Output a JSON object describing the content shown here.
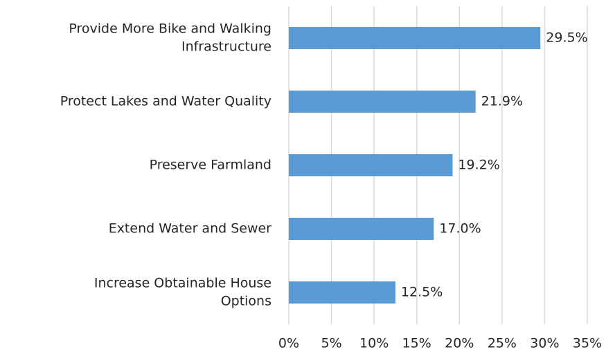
{
  "chart_data": {
    "type": "bar",
    "orientation": "horizontal",
    "categories": [
      [
        "Provide More Bike and Walking",
        "Infrastructure"
      ],
      [
        "Protect Lakes and Water Quality"
      ],
      [
        "Preserve Farmland"
      ],
      [
        "Extend Water and Sewer"
      ],
      [
        "Increase Obtainable House",
        "Options"
      ]
    ],
    "values": [
      29.5,
      21.9,
      19.2,
      17.0,
      12.5
    ],
    "value_labels": [
      "29.5%",
      "21.9%",
      "19.2%",
      "17.0%",
      "12.5%"
    ],
    "color": "#5b9bd5",
    "xlim": [
      0,
      35
    ],
    "xticks": [
      {
        "value": 0,
        "label": "0%"
      },
      {
        "value": 5,
        "label": "5%"
      },
      {
        "value": 10,
        "label": "10%"
      },
      {
        "value": 15,
        "label": "15%"
      },
      {
        "value": 20,
        "label": "20%"
      },
      {
        "value": 25,
        "label": "25%"
      },
      {
        "value": 30,
        "label": "30%"
      },
      {
        "value": 35,
        "label": "35%"
      }
    ],
    "grid": true
  }
}
